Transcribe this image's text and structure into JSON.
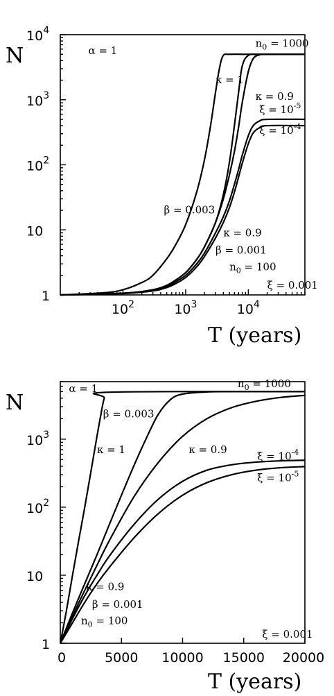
{
  "chart_data": [
    {
      "type": "line",
      "ylabel": "N",
      "xlabel": "T (years)",
      "xscale": "log",
      "yscale": "log",
      "xlim": [
        10,
        80000
      ],
      "ylim": [
        1,
        10000
      ],
      "x_ticks": [
        {
          "value": 100,
          "base": "10",
          "exp": "2"
        },
        {
          "value": 1000,
          "base": "10",
          "exp": "3"
        },
        {
          "value": 10000,
          "base": "10",
          "exp": "4"
        }
      ],
      "y_ticks": [
        {
          "value": 1,
          "base": "1",
          "exp": ""
        },
        {
          "value": 10,
          "base": "10",
          "exp": ""
        },
        {
          "value": 100,
          "base": "10",
          "exp": "2"
        },
        {
          "value": 1000,
          "base": "10",
          "exp": "3"
        },
        {
          "value": 10000,
          "base": "10",
          "exp": "4"
        }
      ],
      "series": [
        {
          "x": [
            10,
            50,
            100,
            200,
            300,
            500,
            700,
            1000,
            1500,
            2000,
            2500,
            3000,
            3500,
            4000,
            5000,
            10000,
            80000
          ],
          "y": [
            1.0,
            1.08,
            1.2,
            1.55,
            2.0,
            3.6,
            6.0,
            12,
            38,
            120,
            400,
            1300,
            3200,
            4800,
            5000,
            5000,
            5000
          ]
        },
        {
          "x": [
            10,
            100,
            300,
            500,
            700,
            1000,
            1500,
            2000,
            3000,
            4000,
            5000,
            6000,
            7000,
            8000,
            10000,
            15000,
            80000
          ],
          "y": [
            1.0,
            1.06,
            1.2,
            1.4,
            1.7,
            2.2,
            3.5,
            5.5,
            13,
            35,
            110,
            400,
            1300,
            3300,
            4800,
            5000,
            5000
          ]
        },
        {
          "x": [
            10,
            100,
            300,
            500,
            700,
            1000,
            1500,
            2000,
            3000,
            4000,
            5000,
            6000,
            7000,
            8000,
            10000,
            12000,
            15000,
            20000,
            80000
          ],
          "y": [
            1.0,
            1.06,
            1.2,
            1.4,
            1.7,
            2.2,
            3.5,
            5.5,
            13,
            30,
            70,
            160,
            380,
            900,
            2700,
            4300,
            4900,
            5000,
            5000
          ]
        },
        {
          "x": [
            10,
            100,
            300,
            500,
            700,
            1000,
            1500,
            2000,
            3000,
            4000,
            5000,
            6000,
            7000,
            8000,
            10000,
            12000,
            15000,
            20000,
            80000
          ],
          "y": [
            1.0,
            1.06,
            1.18,
            1.35,
            1.6,
            2.0,
            3.0,
            4.4,
            9,
            16,
            28,
            50,
            85,
            140,
            280,
            400,
            470,
            500,
            500
          ]
        },
        {
          "x": [
            10,
            100,
            300,
            500,
            700,
            1000,
            1500,
            2000,
            3000,
            4000,
            5000,
            6000,
            7000,
            8000,
            10000,
            12000,
            15000,
            20000,
            80000
          ],
          "y": [
            1.0,
            1.05,
            1.15,
            1.3,
            1.5,
            1.85,
            2.7,
            3.9,
            7.5,
            13,
            22,
            38,
            65,
            105,
            210,
            310,
            370,
            400,
            400
          ]
        }
      ],
      "annotations": [
        {
          "id": "alpha",
          "text": "α = 1",
          "x": 28,
          "y": 5000
        },
        {
          "id": "n0-1000",
          "text": "n",
          "sub": "0",
          "rest": " = 1000",
          "x": 13000,
          "y": 6500
        },
        {
          "id": "kappa-1",
          "text": "κ = 1",
          "x": 3000,
          "y": 1800
        },
        {
          "id": "kappa-09-top",
          "text": "κ = 0.9",
          "x": 13000,
          "y": 1000
        },
        {
          "id": "xi-1e-5",
          "text": "ξ = 10",
          "sup": "-5",
          "x": 15000,
          "y": 620
        },
        {
          "id": "xi-1e-4",
          "text": "ξ = 10",
          "sup": "-4",
          "x": 15000,
          "y": 300
        },
        {
          "id": "beta-0003",
          "text": "β = 0.003",
          "x": 450,
          "y": 18
        },
        {
          "id": "kappa-09-bottom",
          "text": "κ = 0.9",
          "x": 4000,
          "y": 8
        },
        {
          "id": "beta-0001",
          "text": "β = 0.001",
          "x": 3000,
          "y": 4.3
        },
        {
          "id": "n0-100",
          "text": "n",
          "sub": "0",
          "rest": " = 100",
          "x": 5000,
          "y": 2.4
        },
        {
          "id": "xi-0001",
          "text": "ξ = 0.001",
          "x": 20000,
          "y": 1.25
        }
      ]
    },
    {
      "type": "line",
      "ylabel": "N",
      "xlabel": "T (years)",
      "xscale": "linear",
      "yscale": "log",
      "xlim": [
        0,
        20000
      ],
      "ylim": [
        1,
        7000
      ],
      "x_ticks": [
        {
          "value": 0,
          "label": "0"
        },
        {
          "value": 5000,
          "label": "5000"
        },
        {
          "value": 10000,
          "label": "10000"
        },
        {
          "value": 15000,
          "label": "15000"
        },
        {
          "value": 20000,
          "label": "20000"
        }
      ],
      "y_ticks": [
        {
          "value": 1,
          "base": "1",
          "exp": ""
        },
        {
          "value": 10,
          "base": "10",
          "exp": ""
        },
        {
          "value": 100,
          "base": "10",
          "exp": "2"
        },
        {
          "value": 1000,
          "base": "10",
          "exp": "3"
        }
      ],
      "series": [
        {
          "x": [
            0,
            500,
            1000,
            1500,
            2000,
            2500,
            3000,
            3300,
            3600,
            4000,
            20000
          ],
          "y": [
            1.0,
            3.0,
            10,
            32,
            100,
            330,
            1100,
            2200,
            4000,
            4900,
            5000
          ]
        },
        {
          "x": [
            0,
            1000,
            2000,
            3000,
            4000,
            5000,
            6000,
            7000,
            8000,
            9000,
            10000,
            12000,
            14000,
            20000
          ],
          "y": [
            1.0,
            2.8,
            7.5,
            20,
            55,
            150,
            400,
            1000,
            2300,
            3800,
            4600,
            4950,
            5000,
            5000
          ]
        },
        {
          "x": [
            0,
            1000,
            2000,
            3000,
            4000,
            6000,
            8000,
            10000,
            12000,
            14000,
            16000,
            18000,
            20000
          ],
          "y": [
            1.0,
            2.5,
            6,
            14,
            32,
            140,
            450,
            1100,
            2000,
            2900,
            3600,
            4100,
            4400
          ]
        },
        {
          "x": [
            0,
            1000,
            2000,
            3000,
            4000,
            6000,
            8000,
            10000,
            12000,
            14000,
            16000,
            18000,
            20000
          ],
          "y": [
            1.0,
            2.3,
            5,
            10,
            19,
            55,
            130,
            240,
            350,
            420,
            460,
            480,
            490
          ]
        },
        {
          "x": [
            0,
            1000,
            2000,
            3000,
            4000,
            6000,
            8000,
            10000,
            12000,
            14000,
            16000,
            18000,
            20000
          ],
          "y": [
            1.0,
            2.0,
            4,
            7.5,
            13,
            35,
            80,
            150,
            230,
            300,
            350,
            380,
            395
          ]
        }
      ],
      "annotations": [
        {
          "id": "alpha",
          "text": "α = 1",
          "x": 700,
          "y": 4900
        },
        {
          "id": "n0-1000",
          "text": "n",
          "sub": "0",
          "rest": " = 1000",
          "x": 14500,
          "y": 5800
        },
        {
          "id": "beta-0003",
          "text": "β = 0.003",
          "x": 3500,
          "y": 2100
        },
        {
          "id": "kappa-1",
          "text": "κ = 1",
          "x": 3000,
          "y": 620
        },
        {
          "id": "kappa-09-top",
          "text": "κ = 0.9",
          "x": 10500,
          "y": 620
        },
        {
          "id": "xi-1e-4",
          "text": "ξ = 10",
          "sup": "-4",
          "x": 16100,
          "y": 500
        },
        {
          "id": "xi-1e-5",
          "text": "ξ = 10",
          "sup": "-5",
          "x": 16100,
          "y": 240
        },
        {
          "id": "kappa-09-bottom",
          "text": "κ = 0.9",
          "x": 2100,
          "y": 6
        },
        {
          "id": "beta-0001",
          "text": "β = 0.001",
          "x": 2600,
          "y": 3.3
        },
        {
          "id": "n0-100",
          "text": "n",
          "sub": "0",
          "rest": " = 100",
          "x": 1700,
          "y": 1.9
        },
        {
          "id": "xi-0001",
          "text": "ξ = 0.001",
          "x": 16500,
          "y": 1.2
        }
      ]
    }
  ]
}
